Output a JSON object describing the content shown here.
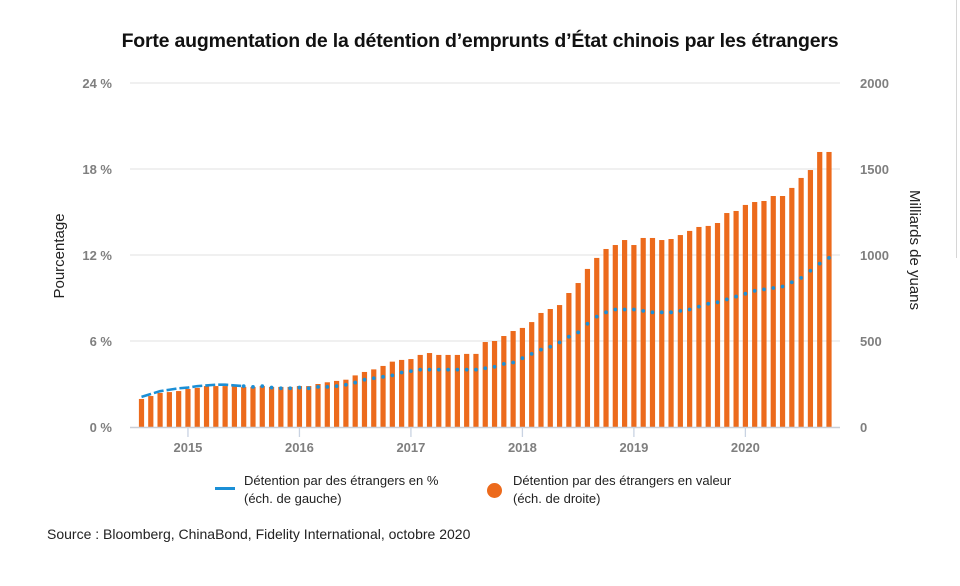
{
  "title": "Forte augmentation de la détention d’emprunts d’État chinois par les étrangers",
  "source": "Source : Bloomberg, ChinaBond, Fidelity International, octobre 2020",
  "colors": {
    "bars": "#ec6a1c",
    "line": "#1b8fd6",
    "grid": "#e6e6e6",
    "ticks": "#7f7f7f"
  },
  "chart_data": {
    "type": "bar+line",
    "title": "Forte augmentation de la détention d’emprunts d’État chinois par les étrangers",
    "ylabel_left": "Pourcentage",
    "ylabel_right": "Milliards de yuans",
    "ylim_left": [
      0,
      24
    ],
    "ylim_right": [
      0,
      2000
    ],
    "yticks_left": [
      "0 %",
      "6 %",
      "12 %",
      "18 %",
      "24 %"
    ],
    "yticks_right": [
      "0",
      "500",
      "1000",
      "1500",
      "2000"
    ],
    "xticks": [
      "2015",
      "2016",
      "2017",
      "2018",
      "2019",
      "2020"
    ],
    "grid": true,
    "x_start": "2014-08",
    "x_end": "2020-10",
    "series": [
      {
        "name": "Détention par des étrangers en valeur",
        "legend": [
          "Détention par des étrangers en valeur",
          "(éch. de droite)"
        ],
        "axis": "right",
        "kind": "bar",
        "values": [
          163,
          180,
          198,
          203,
          209,
          221,
          227,
          238,
          238,
          238,
          238,
          233,
          233,
          238,
          233,
          233,
          233,
          238,
          238,
          250,
          260,
          268,
          275,
          300,
          320,
          335,
          355,
          380,
          390,
          395,
          419,
          430,
          419,
          419,
          419,
          425,
          425,
          494,
          500,
          529,
          558,
          576,
          610,
          663,
          686,
          709,
          779,
          837,
          919,
          983,
          1035,
          1058,
          1087,
          1058,
          1099,
          1099,
          1087,
          1093,
          1116,
          1140,
          1163,
          1169,
          1186,
          1244,
          1256,
          1291,
          1308,
          1314,
          1343,
          1343,
          1390,
          1448,
          1494,
          1599,
          1599
        ]
      },
      {
        "name": "Détention par des étrangers en %",
        "legend": [
          "Détention par des étrangers en %",
          "(éch. de gauche)"
        ],
        "axis": "left",
        "kind": "line",
        "values": [
          2.1,
          2.3,
          2.5,
          2.6,
          2.7,
          2.75,
          2.85,
          2.9,
          2.95,
          2.95,
          2.9,
          2.85,
          2.8,
          2.85,
          2.75,
          2.7,
          2.7,
          2.75,
          2.7,
          2.8,
          2.8,
          2.85,
          2.95,
          3.1,
          3.3,
          3.4,
          3.5,
          3.6,
          3.8,
          3.9,
          4.0,
          4.0,
          4.0,
          4.0,
          4.0,
          4.0,
          4.0,
          4.1,
          4.2,
          4.4,
          4.5,
          4.8,
          5.1,
          5.4,
          5.6,
          5.9,
          6.3,
          6.6,
          7.2,
          7.7,
          8.0,
          8.2,
          8.2,
          8.2,
          8.1,
          8.0,
          8.0,
          8.0,
          8.1,
          8.2,
          8.4,
          8.6,
          8.7,
          8.9,
          9.1,
          9.3,
          9.5,
          9.6,
          9.7,
          9.8,
          10.1,
          10.4,
          10.9,
          11.4,
          11.8
        ]
      }
    ]
  }
}
